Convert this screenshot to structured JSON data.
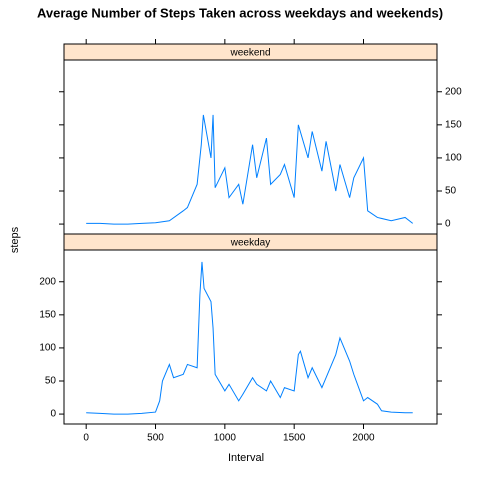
{
  "chart_data": {
    "type": "line",
    "title": "Average Number of Steps Taken across weekdays and weekends)",
    "x_label": "Interval",
    "y_label": "steps",
    "color": "#0080ff",
    "xlim": [
      -160,
      2530
    ],
    "xticks": [
      0,
      500,
      1000,
      1500,
      2000
    ],
    "ylim": [
      -15,
      248
    ],
    "yticks": [
      0,
      50,
      100,
      150,
      200
    ],
    "panels": [
      {
        "name": "weekend",
        "x": [
          0,
          100,
          200,
          300,
          400,
          500,
          600,
          700,
          730,
          800,
          830,
          845,
          900,
          915,
          930,
          1000,
          1030,
          1100,
          1130,
          1200,
          1230,
          1300,
          1330,
          1400,
          1430,
          1500,
          1530,
          1600,
          1630,
          1700,
          1730,
          1800,
          1830,
          1900,
          1930,
          2000,
          2030,
          2100,
          2200,
          2300,
          2355
        ],
        "values": [
          1,
          1,
          0,
          0,
          1,
          2,
          5,
          20,
          25,
          60,
          120,
          165,
          100,
          165,
          55,
          85,
          40,
          60,
          30,
          120,
          70,
          130,
          60,
          75,
          90,
          40,
          150,
          100,
          140,
          80,
          125,
          50,
          90,
          40,
          70,
          100,
          20,
          10,
          5,
          10,
          1
        ]
      },
      {
        "name": "weekday",
        "x": [
          0,
          100,
          200,
          300,
          400,
          500,
          530,
          550,
          600,
          630,
          700,
          730,
          800,
          820,
          835,
          850,
          900,
          915,
          930,
          1000,
          1030,
          1100,
          1130,
          1200,
          1230,
          1300,
          1330,
          1400,
          1430,
          1500,
          1530,
          1545,
          1600,
          1630,
          1700,
          1730,
          1800,
          1830,
          1900,
          1930,
          2000,
          2030,
          2100,
          2130,
          2200,
          2300,
          2355
        ],
        "values": [
          2,
          1,
          0,
          0,
          1,
          3,
          20,
          50,
          75,
          55,
          60,
          75,
          70,
          180,
          230,
          190,
          170,
          130,
          60,
          35,
          45,
          20,
          30,
          55,
          45,
          35,
          50,
          25,
          40,
          35,
          90,
          95,
          55,
          70,
          40,
          55,
          90,
          115,
          80,
          60,
          20,
          25,
          15,
          5,
          3,
          2,
          2
        ]
      }
    ]
  }
}
